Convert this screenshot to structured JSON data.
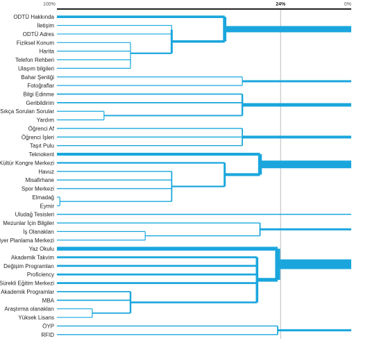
{
  "chart_data": {
    "type": "dendrogram",
    "title": "",
    "x_axis": {
      "direction": "descending",
      "range": [
        100,
        0
      ],
      "ticks": [
        {
          "value": 100,
          "label": "100%"
        },
        {
          "value": 24,
          "label": "24%",
          "highlight": true
        },
        {
          "value": 0,
          "label": "0%"
        }
      ],
      "reference_line": 24
    },
    "colors": {
      "link": "#1aa6dd",
      "axis": "#222222",
      "reference": "#bbbbbb"
    },
    "leaves": [
      "ODTÜ Hakkında",
      "İletişim",
      "ODTÜ Adres",
      "Fiziksel Konum",
      "Harita",
      "Telefon Rehberi",
      "Ulaşım bilgileri",
      "Bahar Şenliği",
      "Fotoğraflar",
      "Bilgi Edinme",
      "Geribildirim",
      "Sıkça Sorulan Sorular",
      "Yardım",
      "Öğrenci Af",
      "Öğrenci İşleri",
      "Taşıt Pulu",
      "Teknokent",
      "Kültür Kongre Merkezi",
      "Havuz",
      "Misafirhane",
      "Spor Merkezi",
      "Elmadağ",
      "Eymir",
      "Uludağ Tesisleri",
      "Mezunlar İçin Bilgiler",
      "İş Olanakları",
      "Kariyer Planlama Merkezi",
      "Yaz Okulu",
      "Akademik Takvim",
      "Değişim Programları",
      "Proficiency",
      "Sürekli Eğitim Merkezi",
      "Akademik Programlar",
      "MBA",
      "Araştırma olanakları",
      "Yüksek Lisans",
      "ÖYP",
      "RFID"
    ],
    "merges": [
      {
        "members": [
          5,
          6
        ],
        "height": 75,
        "weight": 2
      },
      {
        "members": [
          3,
          4,
          "m0"
        ],
        "height": 75,
        "weight": 2
      },
      {
        "members": [
          1,
          2
        ],
        "height": 61,
        "weight": 1.5
      },
      {
        "members": [
          "m1",
          "m2"
        ],
        "height": 61,
        "weight": 5
      },
      {
        "members": [
          0,
          "m3"
        ],
        "height": 43,
        "weight": 8
      },
      {
        "members": [
          7,
          8
        ],
        "height": 37,
        "weight": 2
      },
      {
        "members": [
          11,
          12
        ],
        "height": 84,
        "weight": 1.5
      },
      {
        "members": [
          9,
          10,
          "m6"
        ],
        "height": 37,
        "weight": 4
      },
      {
        "members": [
          13,
          14,
          15
        ],
        "height": 37,
        "weight": 3
      },
      {
        "members": [
          21,
          22
        ],
        "height": 99,
        "weight": 1.5
      },
      {
        "members": [
          18,
          19,
          20,
          "m9"
        ],
        "height": 61,
        "weight": 3
      },
      {
        "members": [
          17,
          "m10"
        ],
        "height": 43,
        "weight": 5
      },
      {
        "members": [
          16,
          "m11"
        ],
        "height": 31,
        "weight": 9
      },
      {
        "members": [
          25,
          26
        ],
        "height": 70,
        "weight": 1.5
      },
      {
        "members": [
          24,
          "m13"
        ],
        "height": 31,
        "weight": 3
      },
      {
        "members": [
          34,
          35
        ],
        "height": 88,
        "weight": 1.5
      },
      {
        "members": [
          32,
          33,
          "m15"
        ],
        "height": 75,
        "weight": 4
      },
      {
        "members": [
          28,
          29,
          30,
          31,
          "m16"
        ],
        "height": 32,
        "weight": 6
      },
      {
        "members": [
          27,
          "m17"
        ],
        "height": 25,
        "weight": 12
      },
      {
        "members": [
          36,
          37
        ],
        "height": 25,
        "weight": 3
      }
    ],
    "root_branches": [
      {
        "node": "m4",
        "weight": 9
      },
      {
        "node": "m5",
        "weight": 3
      },
      {
        "node": "m7",
        "weight": 5
      },
      {
        "node": "m8",
        "weight": 4
      },
      {
        "node": "m12",
        "weight": 11
      },
      {
        "node": 23,
        "weight": 1.5
      },
      {
        "node": "m14",
        "weight": 3
      },
      {
        "node": "m18",
        "weight": 14
      },
      {
        "node": "m19",
        "weight": 3
      }
    ]
  }
}
